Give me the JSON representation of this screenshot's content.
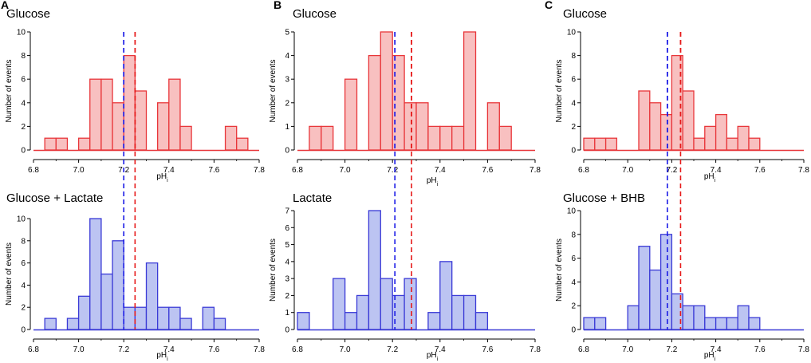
{
  "colors": {
    "red_fill": "#f8c0c0",
    "red_edge": "#e8363a",
    "blue_fill": "#bcc4f2",
    "blue_edge": "#3a3ad6",
    "vline_blue": "#1a1ae6",
    "vline_red": "#e61a1a"
  },
  "chart_data": [
    {
      "type": "bar",
      "panel": "A",
      "title": "Glucose",
      "xlabel": "pH",
      "xlabel_sub": "i",
      "ylabel": "Number of events",
      "color": "red",
      "bin_width": 0.05,
      "xlim": [
        6.8,
        7.8
      ],
      "ylim": [
        0,
        10
      ],
      "xticks": [
        "6.8",
        "7.0",
        "7.2",
        "7.4",
        "7.6",
        "7.8"
      ],
      "yticks": [
        0,
        2,
        4,
        6,
        8,
        10
      ],
      "bins": [
        [
          6.85,
          1
        ],
        [
          6.9,
          1
        ],
        [
          7.0,
          1
        ],
        [
          7.05,
          6
        ],
        [
          7.1,
          6
        ],
        [
          7.15,
          4
        ],
        [
          7.2,
          8
        ],
        [
          7.25,
          5
        ],
        [
          7.35,
          4
        ],
        [
          7.4,
          6
        ],
        [
          7.45,
          2
        ],
        [
          7.65,
          2
        ],
        [
          7.7,
          1
        ]
      ],
      "vlines": {
        "blue": 7.2,
        "red": 7.25
      }
    },
    {
      "type": "bar",
      "panel": "A",
      "title": "Glucose + Lactate",
      "xlabel": "pH",
      "xlabel_sub": "i",
      "ylabel": "Number of events",
      "color": "blue",
      "bin_width": 0.05,
      "xlim": [
        6.8,
        7.8
      ],
      "ylim": [
        0,
        10
      ],
      "xticks": [
        "6.8",
        "7.0",
        "7.2",
        "7.4",
        "7.6",
        "7.8"
      ],
      "yticks": [
        0,
        2,
        4,
        6,
        8,
        10
      ],
      "bins": [
        [
          6.85,
          1
        ],
        [
          6.95,
          1
        ],
        [
          7.0,
          3
        ],
        [
          7.05,
          10
        ],
        [
          7.1,
          5
        ],
        [
          7.15,
          8
        ],
        [
          7.2,
          2
        ],
        [
          7.25,
          2
        ],
        [
          7.3,
          6
        ],
        [
          7.35,
          2
        ],
        [
          7.4,
          2
        ],
        [
          7.45,
          1
        ],
        [
          7.55,
          2
        ],
        [
          7.6,
          1
        ]
      ],
      "vlines": {
        "blue": 7.2,
        "red": 7.25
      }
    },
    {
      "type": "bar",
      "panel": "B",
      "title": "Glucose",
      "xlabel": "pH",
      "xlabel_sub": "i",
      "ylabel": "Number of events",
      "color": "red",
      "bin_width": 0.05,
      "xlim": [
        6.8,
        7.8
      ],
      "ylim": [
        0,
        5
      ],
      "xticks": [
        "6.8",
        "7.0",
        "7.2",
        "7.4",
        "7.6",
        "7.8"
      ],
      "yticks": [
        0,
        1,
        2,
        3,
        4,
        5
      ],
      "bins": [
        [
          6.85,
          1
        ],
        [
          6.9,
          1
        ],
        [
          7.0,
          3
        ],
        [
          7.1,
          4
        ],
        [
          7.15,
          5
        ],
        [
          7.2,
          4
        ],
        [
          7.25,
          2
        ],
        [
          7.3,
          2
        ],
        [
          7.35,
          1
        ],
        [
          7.4,
          1
        ],
        [
          7.45,
          1
        ],
        [
          7.5,
          5
        ],
        [
          7.6,
          2
        ],
        [
          7.65,
          1
        ]
      ],
      "vlines": {
        "blue": 7.21,
        "red": 7.28
      }
    },
    {
      "type": "bar",
      "panel": "B",
      "title": "Lactate",
      "xlabel": "pH",
      "xlabel_sub": "i",
      "ylabel": "Number of events",
      "color": "blue",
      "bin_width": 0.05,
      "xlim": [
        6.8,
        7.8
      ],
      "ylim": [
        0,
        7
      ],
      "xticks": [
        "6.8",
        "7.0",
        "7.2",
        "7.4",
        "7.6",
        "7.8"
      ],
      "yticks": [
        0,
        1,
        2,
        3,
        4,
        5,
        6,
        7
      ],
      "bins": [
        [
          6.8,
          1
        ],
        [
          6.95,
          3
        ],
        [
          7.0,
          1
        ],
        [
          7.05,
          2
        ],
        [
          7.1,
          7
        ],
        [
          7.15,
          3
        ],
        [
          7.2,
          2
        ],
        [
          7.25,
          3
        ],
        [
          7.35,
          1
        ],
        [
          7.4,
          4
        ],
        [
          7.45,
          2
        ],
        [
          7.5,
          2
        ],
        [
          7.55,
          1
        ]
      ],
      "vlines": {
        "blue": 7.21,
        "red": 7.28
      }
    },
    {
      "type": "bar",
      "panel": "C",
      "title": "Glucose",
      "xlabel": "pH",
      "xlabel_sub": "i",
      "ylabel": "Number of events",
      "color": "red",
      "bin_width": 0.05,
      "xlim": [
        6.8,
        7.8
      ],
      "ylim": [
        0,
        10
      ],
      "xticks": [
        "6.8",
        "7.0",
        "7.2",
        "7.4",
        "7.6",
        "7.8"
      ],
      "yticks": [
        0,
        2,
        4,
        6,
        8,
        10
      ],
      "bins": [
        [
          6.8,
          1
        ],
        [
          6.85,
          1
        ],
        [
          6.9,
          1
        ],
        [
          7.05,
          5
        ],
        [
          7.1,
          4
        ],
        [
          7.15,
          3
        ],
        [
          7.2,
          8
        ],
        [
          7.25,
          5
        ],
        [
          7.3,
          1
        ],
        [
          7.35,
          2
        ],
        [
          7.4,
          3
        ],
        [
          7.45,
          1
        ],
        [
          7.5,
          2
        ],
        [
          7.55,
          1
        ]
      ],
      "vlines": {
        "blue": 7.18,
        "red": 7.24
      }
    },
    {
      "type": "bar",
      "panel": "C",
      "title": "Glucose + BHB",
      "xlabel": "pH",
      "xlabel_sub": "i",
      "ylabel": "Number of events",
      "color": "blue",
      "bin_width": 0.05,
      "xlim": [
        6.8,
        7.8
      ],
      "ylim": [
        0,
        10
      ],
      "xticks": [
        "6.8",
        "7.0",
        "7.2",
        "7.4",
        "7.6",
        "7.8"
      ],
      "yticks": [
        0,
        2,
        4,
        6,
        8,
        10
      ],
      "bins": [
        [
          6.8,
          1
        ],
        [
          6.85,
          1
        ],
        [
          7.0,
          2
        ],
        [
          7.05,
          7
        ],
        [
          7.1,
          5
        ],
        [
          7.15,
          8
        ],
        [
          7.2,
          3
        ],
        [
          7.25,
          2
        ],
        [
          7.3,
          2
        ],
        [
          7.35,
          1
        ],
        [
          7.4,
          1
        ],
        [
          7.45,
          1
        ],
        [
          7.5,
          2
        ],
        [
          7.55,
          1
        ]
      ],
      "vlines": {
        "blue": 7.18,
        "red": 7.24
      }
    }
  ]
}
